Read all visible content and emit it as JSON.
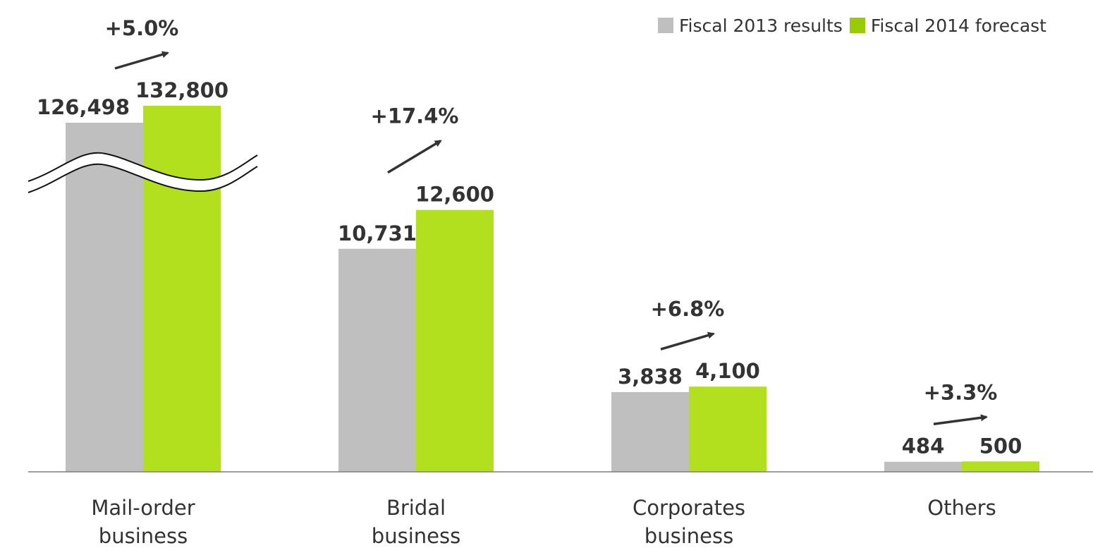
{
  "chart_data": {
    "type": "bar",
    "categories": [
      [
        "Mail-order",
        "business"
      ],
      [
        "Bridal",
        "business"
      ],
      [
        "Corporates",
        "business"
      ],
      [
        "Others"
      ]
    ],
    "series": [
      {
        "name": "Fiscal 2013 results",
        "color": "#bfbfbf",
        "values": [
          126498,
          10731,
          3838,
          484
        ],
        "labels": [
          "126,498",
          "10,731",
          "3,838",
          "484"
        ]
      },
      {
        "name": "Fiscal 2014 forecast",
        "color": "#b2df1e",
        "values": [
          132800,
          12600,
          4100,
          500
        ],
        "labels": [
          "132,800",
          "12,600",
          "4,100",
          "500"
        ]
      }
    ],
    "growth_labels": [
      "+5.0%",
      "+17.4%",
      "+6.8%",
      "+3.3%"
    ],
    "axis_break": {
      "category": "Mail-order business"
    },
    "legend_position": "top-right",
    "grid": false
  },
  "legend": {
    "items": [
      {
        "label": "Fiscal 2013 results",
        "color": "#bfbfbf"
      },
      {
        "label": "Fiscal 2014 forecast",
        "color": "#99cc00"
      }
    ]
  }
}
